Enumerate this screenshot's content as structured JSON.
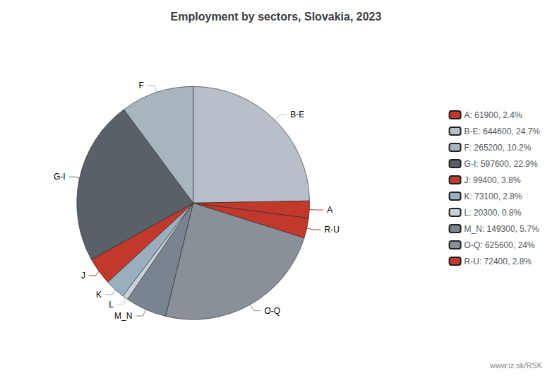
{
  "chart_data": {
    "type": "pie",
    "title": "Employment by sectors, Slovakia, 2023",
    "categories": [
      "B-E",
      "A",
      "R-U",
      "O-Q",
      "M_N",
      "L",
      "K",
      "J",
      "G-I",
      "F"
    ],
    "values": [
      644600,
      61900,
      72400,
      625600,
      149300,
      20300,
      73100,
      99400,
      597600,
      265200
    ],
    "colors": [
      "#b8bfc8",
      "#c0392b",
      "#c0392b",
      "#8a9098",
      "#7a8490",
      "#c8d2d8",
      "#9aaec0",
      "#c0392b",
      "#5a6068",
      "#a8b4be"
    ],
    "legend": "right",
    "legend_entries": [
      {
        "category": "A",
        "label": "A: 61900, 2.4%"
      },
      {
        "category": "B-E",
        "label": "B-E: 644600, 24.7%"
      },
      {
        "category": "F",
        "label": "F: 265200, 10.2%"
      },
      {
        "category": "G-I",
        "label": "G-I: 597600, 22.9%"
      },
      {
        "category": "J",
        "label": "J: 99400, 3.8%"
      },
      {
        "category": "K",
        "label": "K: 73100, 2.8%"
      },
      {
        "category": "L",
        "label": "L: 20300, 0.8%"
      },
      {
        "category": "M_N",
        "label": "M_N: 149300, 5.7%"
      },
      {
        "category": "O-Q",
        "label": "O-Q: 625600, 24%"
      },
      {
        "category": "R-U",
        "label": "R-U: 72400, 2.8%"
      }
    ],
    "annotation": "www.iz.sk/RSK"
  }
}
